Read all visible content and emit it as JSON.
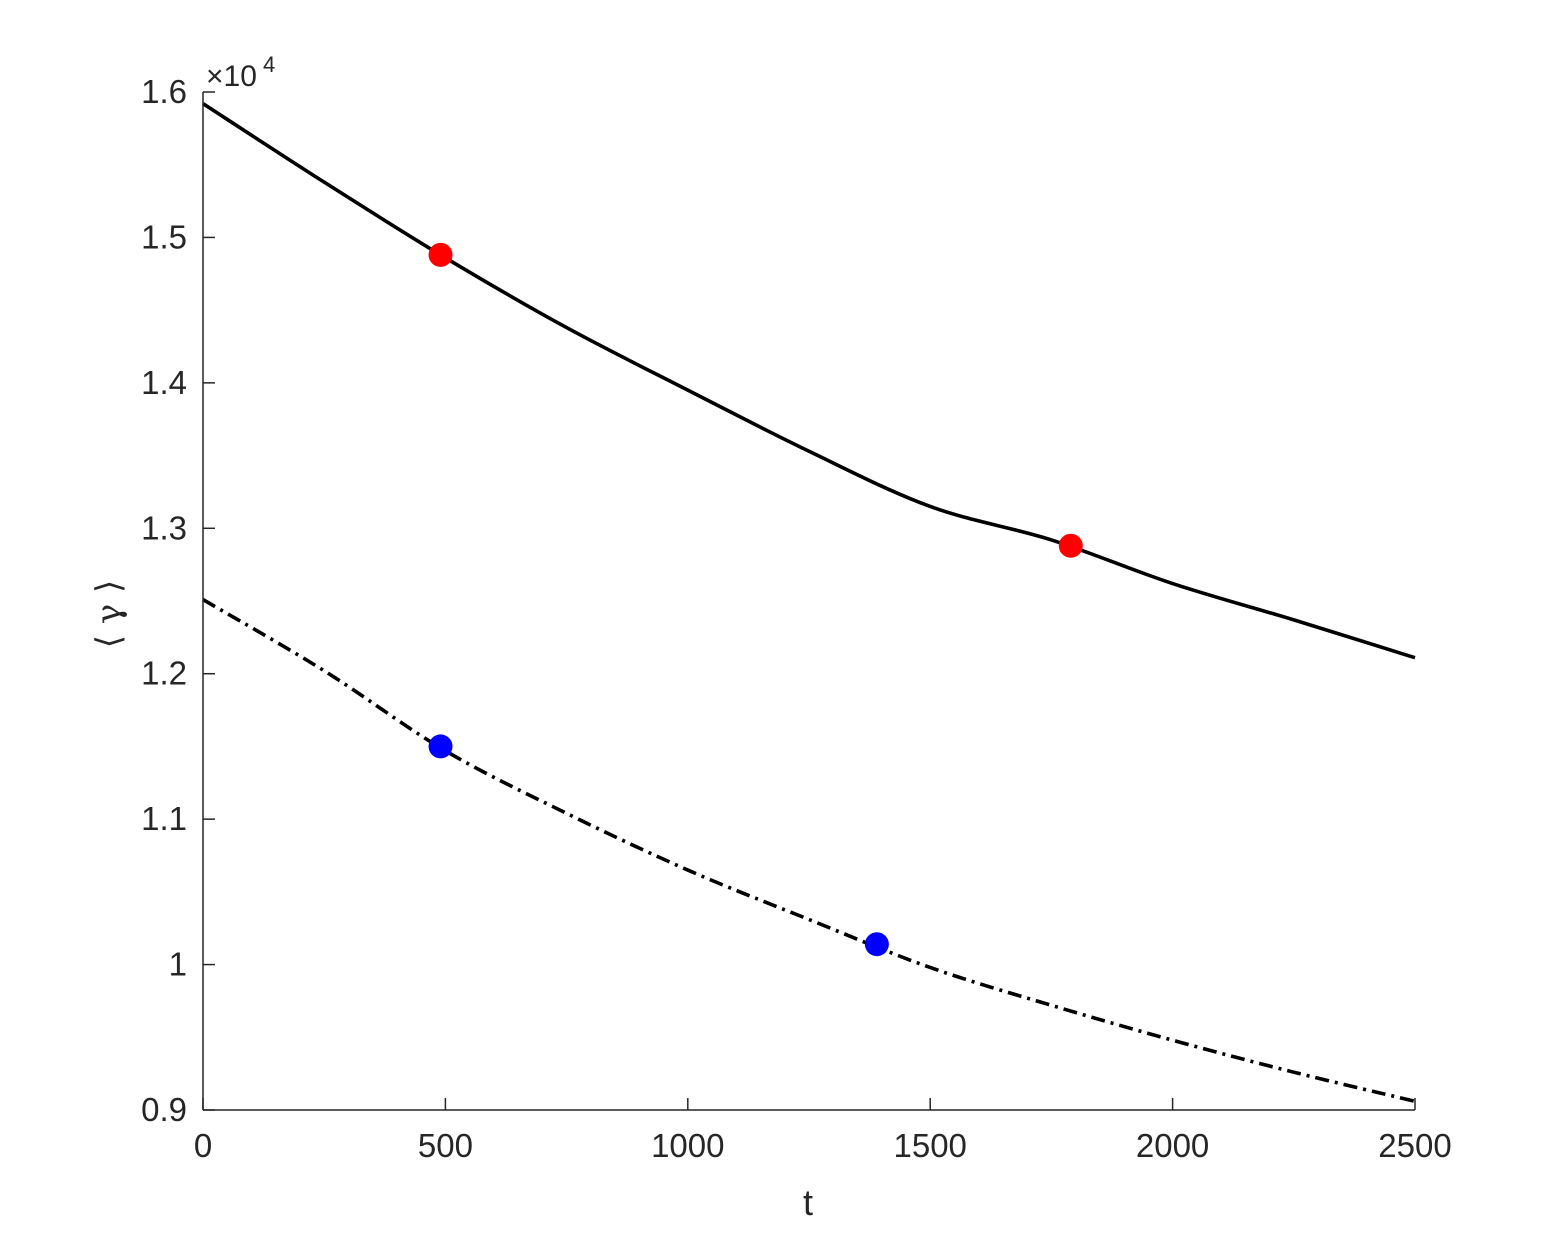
{
  "chart_data": {
    "type": "line",
    "xlabel": "t",
    "ylabel": "⟨ γ ⟩",
    "xlim": [
      0,
      2500
    ],
    "ylim": [
      9000,
      16000
    ],
    "x_ticks": [
      0,
      500,
      1000,
      1500,
      2000,
      2500
    ],
    "x_tick_labels": [
      "0",
      "500",
      "1000",
      "1500",
      "2000",
      "2500"
    ],
    "y_ticks": [
      9000,
      10000,
      11000,
      12000,
      13000,
      14000,
      15000,
      16000
    ],
    "y_tick_labels": [
      "0.9",
      "1",
      "1.1",
      "1.2",
      "1.3",
      "1.4",
      "1.5",
      "1.6"
    ],
    "y_exponent_label": {
      "base": "×10",
      "power": "4"
    },
    "grid": false,
    "box": "left-bottom axes only",
    "series": [
      {
        "style": "solid",
        "color": "#000000",
        "x": [
          0,
          250,
          500,
          750,
          1000,
          1250,
          1500,
          1750,
          2000,
          2250,
          2500
        ],
        "y": [
          15920,
          15380,
          14860,
          14380,
          13950,
          13530,
          13150,
          12920,
          12620,
          12370,
          12110
        ]
      },
      {
        "style": "dash-dot",
        "color": "#000000",
        "x": [
          0,
          250,
          500,
          750,
          1000,
          1250,
          1500,
          1750,
          2000,
          2250,
          2500
        ],
        "y": [
          12510,
          12020,
          11470,
          11040,
          10650,
          10310,
          9980,
          9720,
          9480,
          9260,
          9060
        ]
      }
    ],
    "markers": [
      {
        "x": 490,
        "y": 14880,
        "color": "#ff0000"
      },
      {
        "x": 1790,
        "y": 12880,
        "color": "#ff0000"
      },
      {
        "x": 490,
        "y": 11500,
        "color": "#0000ff"
      },
      {
        "x": 1390,
        "y": 10140,
        "color": "#0000ff"
      }
    ]
  }
}
